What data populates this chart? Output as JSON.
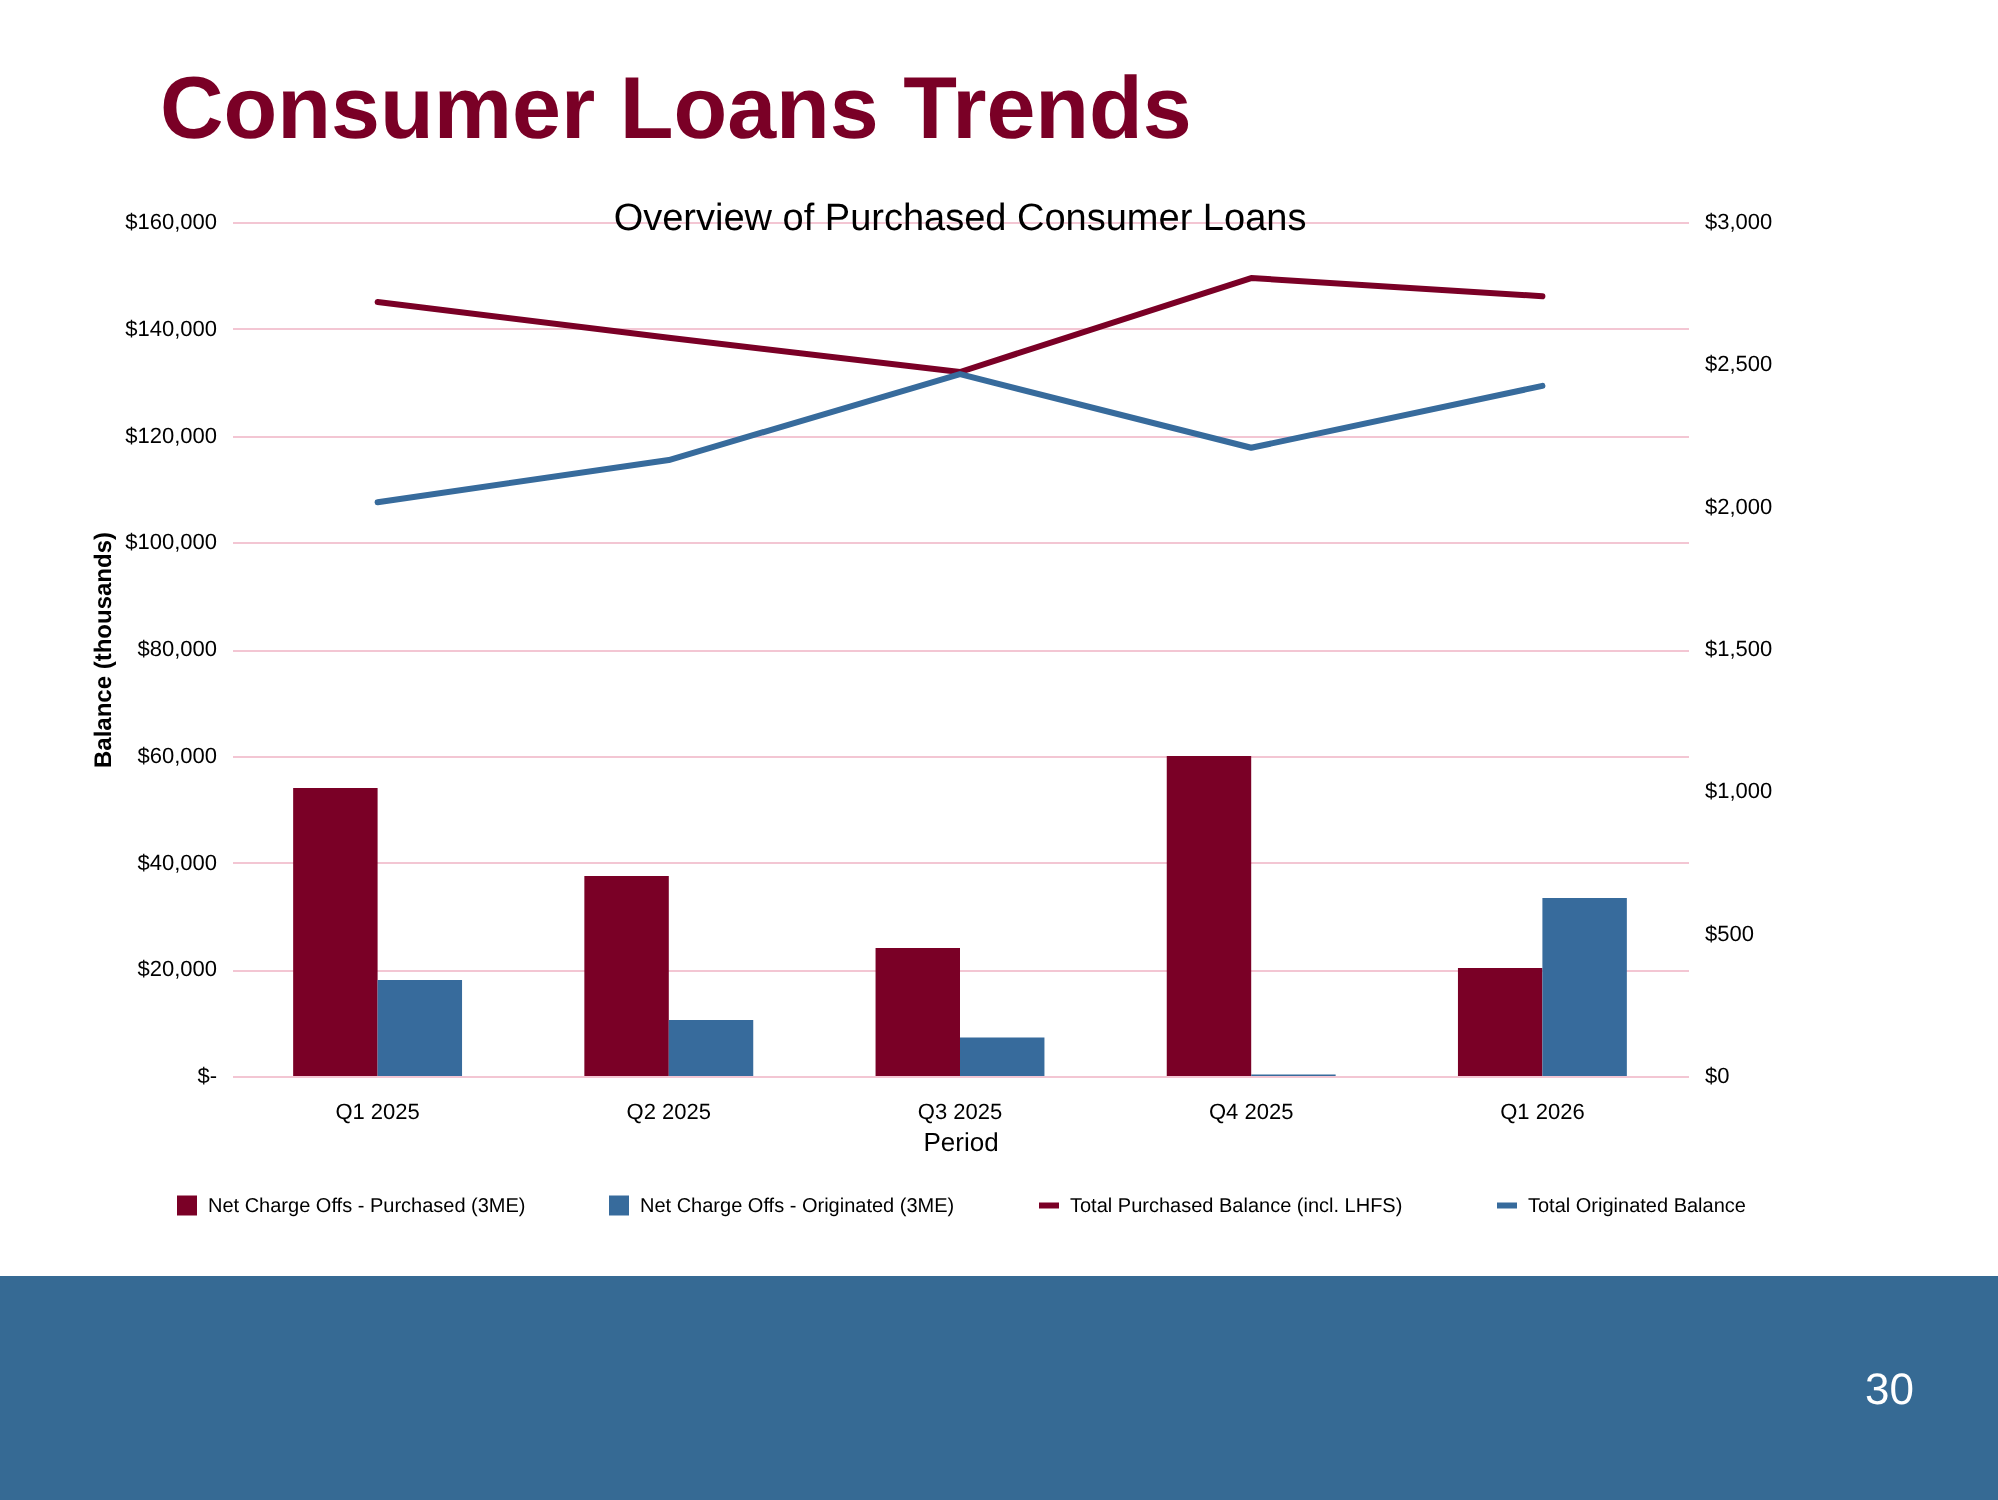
{
  "chart_data": {
    "type": "bar",
    "title": "Consumer Loans Trends",
    "subtitle": "Overview of Purchased Consumer Loans",
    "xlabel": "Period",
    "ylabel": "Balance (thousands)",
    "categories": [
      "Q1 2025",
      "Q2 2025",
      "Q3 2025",
      "Q4 2025",
      "Q1 2026"
    ],
    "series": [
      {
        "name": "Net Charge Offs - Purchased (3ME)",
        "type": "bar",
        "axis": "y2",
        "color": "#7a0026",
        "values": [
          1012,
          703,
          450,
          1124,
          379
        ]
      },
      {
        "name": "Net Charge Offs - Originated (3ME)",
        "type": "bar",
        "axis": "y2",
        "color": "#376b9c",
        "values": [
          337,
          197,
          135,
          5,
          625
        ]
      },
      {
        "name": "Total Purchased Balance (incl. LHFS)",
        "type": "line",
        "color": "#7a0026",
        "values": [
          145000,
          138300,
          131900,
          149500,
          146100
        ]
      },
      {
        "name": "Total Originated Balance",
        "type": "line",
        "color": "#376b9c",
        "values": [
          107500,
          115400,
          131500,
          117700,
          129300
        ]
      }
    ],
    "ylim": [
      0,
      160000
    ],
    "yticks": [
      {
        "value": 0,
        "label": "$-"
      },
      {
        "value": 20000,
        "label": "$20,000"
      },
      {
        "value": 40000,
        "label": "$40,000"
      },
      {
        "value": 60000,
        "label": "$60,000"
      },
      {
        "value": 80000,
        "label": "$80,000"
      },
      {
        "value": 100000,
        "label": "$100,000"
      },
      {
        "value": 120000,
        "label": "$120,000"
      },
      {
        "value": 140000,
        "label": "$140,000"
      },
      {
        "value": 160000,
        "label": "$160,000"
      }
    ],
    "y2lim": [
      0,
      3000
    ],
    "y2ticks": [
      {
        "value": 0,
        "label": "$0"
      },
      {
        "value": 500,
        "label": "$500"
      },
      {
        "value": 1000,
        "label": "$1,000"
      },
      {
        "value": 1500,
        "label": "$1,500"
      },
      {
        "value": 2000,
        "label": "$2,000"
      },
      {
        "value": 2500,
        "label": "$2,500"
      },
      {
        "value": 3000,
        "label": "$3,000"
      }
    ],
    "grid": "y",
    "legend": "bottom",
    "annotations": [
      "30"
    ]
  }
}
